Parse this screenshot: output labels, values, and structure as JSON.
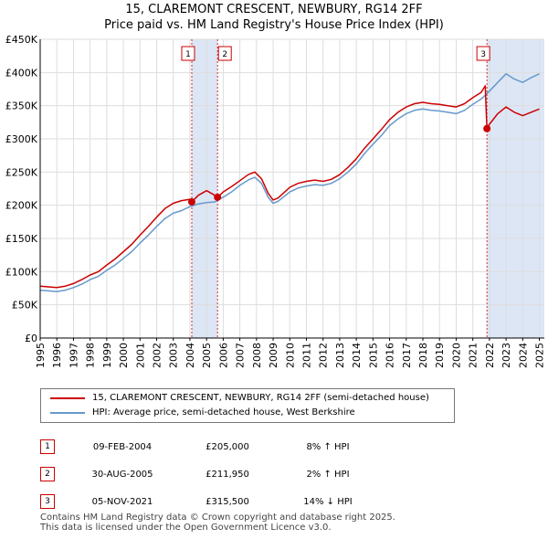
{
  "title_line1": "15, CLAREMONT CRESCENT, NEWBURY, RG14 2FF",
  "title_line2": "Price paid vs. HM Land Registry's House Price Index (HPI)",
  "colors": {
    "property": "#cc0000",
    "hpi": "#6699cc",
    "shade": "#dde6f5",
    "marker": "#cc0000"
  },
  "legend": [
    {
      "label": "15, CLAREMONT CRESCENT, NEWBURY, RG14 2FF (semi-detached house)",
      "color": "#cc0000"
    },
    {
      "label": "HPI: Average price, semi-detached house, West Berkshire",
      "color": "#6699cc"
    }
  ],
  "transactions": [
    {
      "num": "1",
      "date": "09-FEB-2004",
      "price": "£205,000",
      "hpi": "8% ↑ HPI"
    },
    {
      "num": "2",
      "date": "30-AUG-2005",
      "price": "£211,950",
      "hpi": "2% ↑ HPI"
    },
    {
      "num": "3",
      "date": "05-NOV-2021",
      "price": "£315,500",
      "hpi": "14% ↓ HPI"
    }
  ],
  "footer_line1": "Contains HM Land Registry data © Crown copyright and database right 2025.",
  "footer_line2": "This data is licensed under the Open Government Licence v3.0.",
  "chart_data": {
    "type": "line",
    "xlim": [
      1995.0,
      2025.3
    ],
    "ylim": [
      0,
      450000
    ],
    "x_ticks": [
      1995,
      1996,
      1997,
      1998,
      1999,
      2000,
      2001,
      2002,
      2003,
      2004,
      2005,
      2006,
      2007,
      2008,
      2009,
      2010,
      2011,
      2012,
      2013,
      2014,
      2015,
      2016,
      2017,
      2018,
      2019,
      2020,
      2021,
      2022,
      2023,
      2024,
      2025
    ],
    "y_ticks": [
      0,
      50000,
      100000,
      150000,
      200000,
      250000,
      300000,
      350000,
      400000,
      450000
    ],
    "y_tick_labels": [
      "£0",
      "£50K",
      "£100K",
      "£150K",
      "£200K",
      "£250K",
      "£300K",
      "£350K",
      "£400K",
      "£450K"
    ],
    "grid": true,
    "shaded_ranges": [
      [
        2004.11,
        2005.66
      ],
      [
        2021.85,
        2025.3
      ]
    ],
    "sale_points": [
      {
        "label": "1",
        "x": 2004.11,
        "y": 205000
      },
      {
        "label": "2",
        "x": 2005.66,
        "y": 211950
      },
      {
        "label": "3",
        "x": 2021.85,
        "y": 315500
      }
    ],
    "series": [
      {
        "name": "HPI: Average price, semi-detached house, West Berkshire",
        "color": "#6699cc",
        "x": [
          1995.0,
          1995.5,
          1996.0,
          1996.5,
          1997.0,
          1997.5,
          1998.0,
          1998.5,
          1999.0,
          1999.5,
          2000.0,
          2000.5,
          2001.0,
          2001.5,
          2002.0,
          2002.5,
          2003.0,
          2003.5,
          2004.0,
          2004.5,
          2005.0,
          2005.5,
          2006.0,
          2006.5,
          2007.0,
          2007.5,
          2007.9,
          2008.3,
          2008.7,
          2009.0,
          2009.3,
          2009.7,
          2010.0,
          2010.5,
          2011.0,
          2011.5,
          2012.0,
          2012.5,
          2013.0,
          2013.5,
          2014.0,
          2014.5,
          2015.0,
          2015.5,
          2016.0,
          2016.5,
          2017.0,
          2017.5,
          2018.0,
          2018.5,
          2019.0,
          2019.5,
          2020.0,
          2020.5,
          2021.0,
          2021.5,
          2021.85,
          2022.0,
          2022.5,
          2023.0,
          2023.5,
          2024.0,
          2024.5,
          2025.0
        ],
        "y": [
          72000,
          71000,
          70000,
          72000,
          76000,
          81000,
          88000,
          93000,
          102000,
          110000,
          120000,
          130000,
          143000,
          155000,
          168000,
          180000,
          188000,
          192000,
          198000,
          202000,
          204000,
          205000,
          212000,
          220000,
          230000,
          238000,
          242000,
          233000,
          212000,
          203000,
          206000,
          214000,
          220000,
          226000,
          229000,
          231000,
          230000,
          233000,
          240000,
          250000,
          262000,
          278000,
          292000,
          305000,
          320000,
          330000,
          338000,
          343000,
          345000,
          343000,
          342000,
          340000,
          338000,
          343000,
          352000,
          360000,
          368000,
          372000,
          385000,
          398000,
          390000,
          385000,
          392000,
          398000
        ]
      },
      {
        "name": "15, CLAREMONT CRESCENT, NEWBURY, RG14 2FF (semi-detached house)",
        "color": "#cc0000",
        "x": [
          1995.0,
          1995.5,
          1996.0,
          1996.5,
          1997.0,
          1997.5,
          1998.0,
          1998.5,
          1999.0,
          1999.5,
          2000.0,
          2000.5,
          2001.0,
          2001.5,
          2002.0,
          2002.5,
          2003.0,
          2003.5,
          2004.0,
          2004.11,
          2004.5,
          2005.0,
          2005.5,
          2005.66,
          2006.0,
          2006.5,
          2007.0,
          2007.5,
          2007.9,
          2008.3,
          2008.7,
          2009.0,
          2009.3,
          2009.7,
          2010.0,
          2010.5,
          2011.0,
          2011.5,
          2012.0,
          2012.5,
          2013.0,
          2013.5,
          2014.0,
          2014.5,
          2015.0,
          2015.5,
          2016.0,
          2016.5,
          2017.0,
          2017.5,
          2018.0,
          2018.5,
          2019.0,
          2019.5,
          2020.0,
          2020.5,
          2021.0,
          2021.5,
          2021.75,
          2021.85,
          2022.0,
          2022.5,
          2023.0,
          2023.5,
          2024.0,
          2024.5,
          2025.0
        ],
        "y": [
          78000,
          77000,
          76000,
          78000,
          82000,
          88000,
          95000,
          100000,
          110000,
          119000,
          130000,
          141000,
          155000,
          168000,
          182000,
          195000,
          203000,
          207000,
          209000,
          205000,
          215000,
          222000,
          215000,
          211950,
          220000,
          228000,
          237000,
          246000,
          250000,
          240000,
          218000,
          208000,
          211000,
          220000,
          227000,
          233000,
          236000,
          238000,
          236000,
          239000,
          246000,
          257000,
          270000,
          286000,
          300000,
          314000,
          329000,
          340000,
          348000,
          353000,
          355000,
          353000,
          352000,
          350000,
          348000,
          353000,
          362000,
          370000,
          380000,
          315500,
          322000,
          338000,
          348000,
          340000,
          335000,
          340000,
          345000
        ]
      }
    ]
  }
}
